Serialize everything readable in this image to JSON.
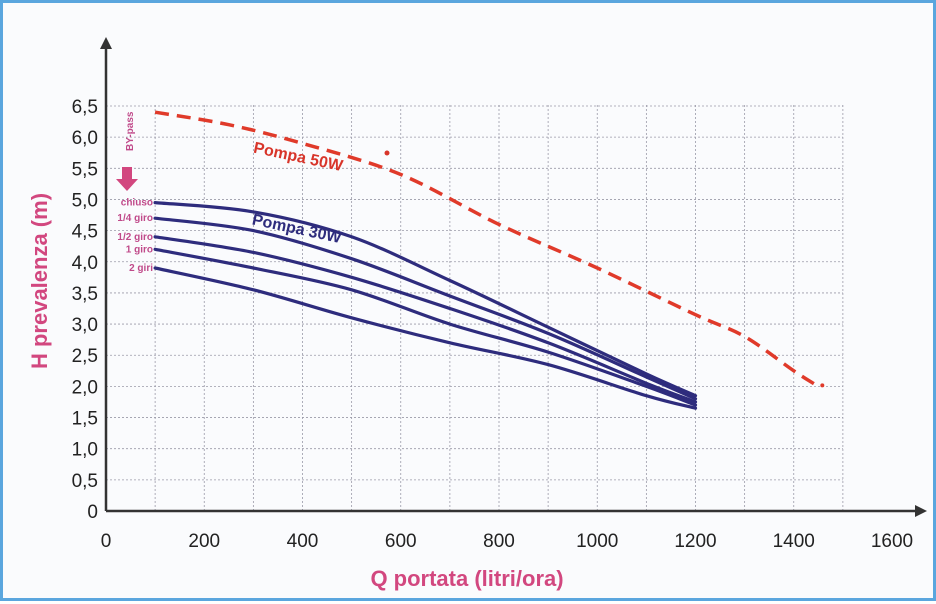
{
  "chart_data": {
    "type": "line",
    "xlabel": "Q portata (litri/ora)",
    "ylabel": "H prevalenza (m)",
    "xlim": [
      0,
      1600
    ],
    "ylim": [
      0,
      6.5
    ],
    "x_ticks": [
      "0",
      "200",
      "400",
      "600",
      "800",
      "1000",
      "1200",
      "1400",
      "1600"
    ],
    "y_ticks": [
      "0",
      "0,5",
      "1,0",
      "1,5",
      "2,0",
      "2,5",
      "3,0",
      "3,5",
      "4,0",
      "4,5",
      "5,0",
      "5,5",
      "6,0",
      "6,5"
    ],
    "grid": true,
    "bypass_label": "BY-pass",
    "series": [
      {
        "name": "Pompa 50W",
        "style": "dashed",
        "color": "#e03a2a",
        "points": [
          [
            100,
            6.4
          ],
          [
            250,
            6.2
          ],
          [
            400,
            5.9
          ],
          [
            600,
            5.4
          ],
          [
            800,
            4.6
          ],
          [
            1000,
            3.9
          ],
          [
            1200,
            3.15
          ],
          [
            1300,
            2.8
          ],
          [
            1400,
            2.25
          ],
          [
            1450,
            2.0
          ]
        ]
      },
      {
        "name": "Pompa 30W",
        "style": "solid",
        "color": "#2e2c7d",
        "valve_positions": [
          {
            "label": "chiuso",
            "points": [
              [
                100,
                4.95
              ],
              [
                300,
                4.8
              ],
              [
                500,
                4.4
              ],
              [
                700,
                3.7
              ],
              [
                900,
                2.95
              ],
              [
                1100,
                2.2
              ],
              [
                1200,
                1.85
              ]
            ]
          },
          {
            "label": "1/4 giro",
            "points": [
              [
                100,
                4.7
              ],
              [
                300,
                4.5
              ],
              [
                500,
                4.05
              ],
              [
                700,
                3.45
              ],
              [
                900,
                2.85
              ],
              [
                1100,
                2.15
              ],
              [
                1200,
                1.8
              ]
            ]
          },
          {
            "label": "1/2 giro",
            "points": [
              [
                100,
                4.4
              ],
              [
                300,
                4.15
              ],
              [
                500,
                3.75
              ],
              [
                700,
                3.25
              ],
              [
                900,
                2.7
              ],
              [
                1100,
                2.05
              ],
              [
                1200,
                1.75
              ]
            ]
          },
          {
            "label": "1 giro",
            "points": [
              [
                100,
                4.2
              ],
              [
                300,
                3.9
              ],
              [
                500,
                3.55
              ],
              [
                700,
                3.0
              ],
              [
                900,
                2.55
              ],
              [
                1100,
                2.0
              ],
              [
                1200,
                1.7
              ]
            ]
          },
          {
            "label": "2 giri",
            "points": [
              [
                100,
                3.9
              ],
              [
                300,
                3.55
              ],
              [
                500,
                3.1
              ],
              [
                700,
                2.7
              ],
              [
                900,
                2.35
              ],
              [
                1100,
                1.85
              ],
              [
                1200,
                1.65
              ]
            ]
          }
        ]
      }
    ]
  }
}
